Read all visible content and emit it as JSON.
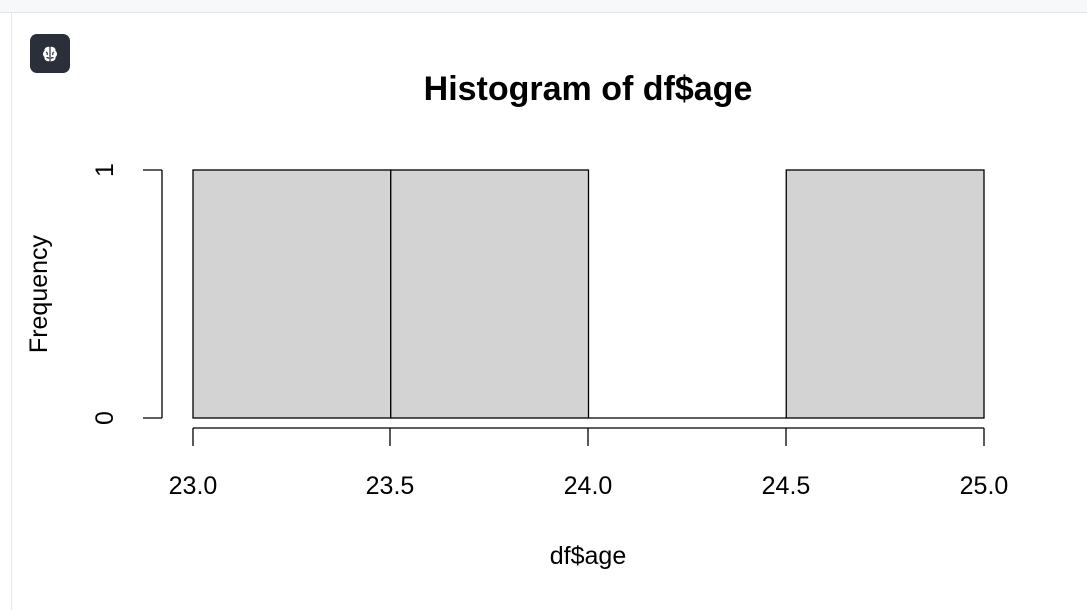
{
  "output_cell": {
    "icon": "brain-icon"
  },
  "chart_data": {
    "type": "histogram",
    "title": "Histogram of df$age",
    "xlabel": "df$age",
    "ylabel": "Frequency",
    "bins": [
      {
        "start": 23.0,
        "end": 23.5,
        "count": 1
      },
      {
        "start": 23.5,
        "end": 24.0,
        "count": 1
      },
      {
        "start": 24.0,
        "end": 24.5,
        "count": 0
      },
      {
        "start": 24.5,
        "end": 25.0,
        "count": 1
      }
    ],
    "xlim": [
      23.0,
      25.0
    ],
    "ylim": [
      0,
      1
    ],
    "x_ticks": [
      {
        "value": 23.0,
        "label": "23.0"
      },
      {
        "value": 23.5,
        "label": "23.5"
      },
      {
        "value": 24.0,
        "label": "24.0"
      },
      {
        "value": 24.5,
        "label": "24.5"
      },
      {
        "value": 25.0,
        "label": "25.0"
      }
    ],
    "y_ticks": [
      {
        "value": 0,
        "label": "0"
      },
      {
        "value": 1,
        "label": "1"
      }
    ],
    "bar_fill": "#d3d3d3",
    "bar_stroke": "#000000",
    "grid": false,
    "legend": "none"
  }
}
